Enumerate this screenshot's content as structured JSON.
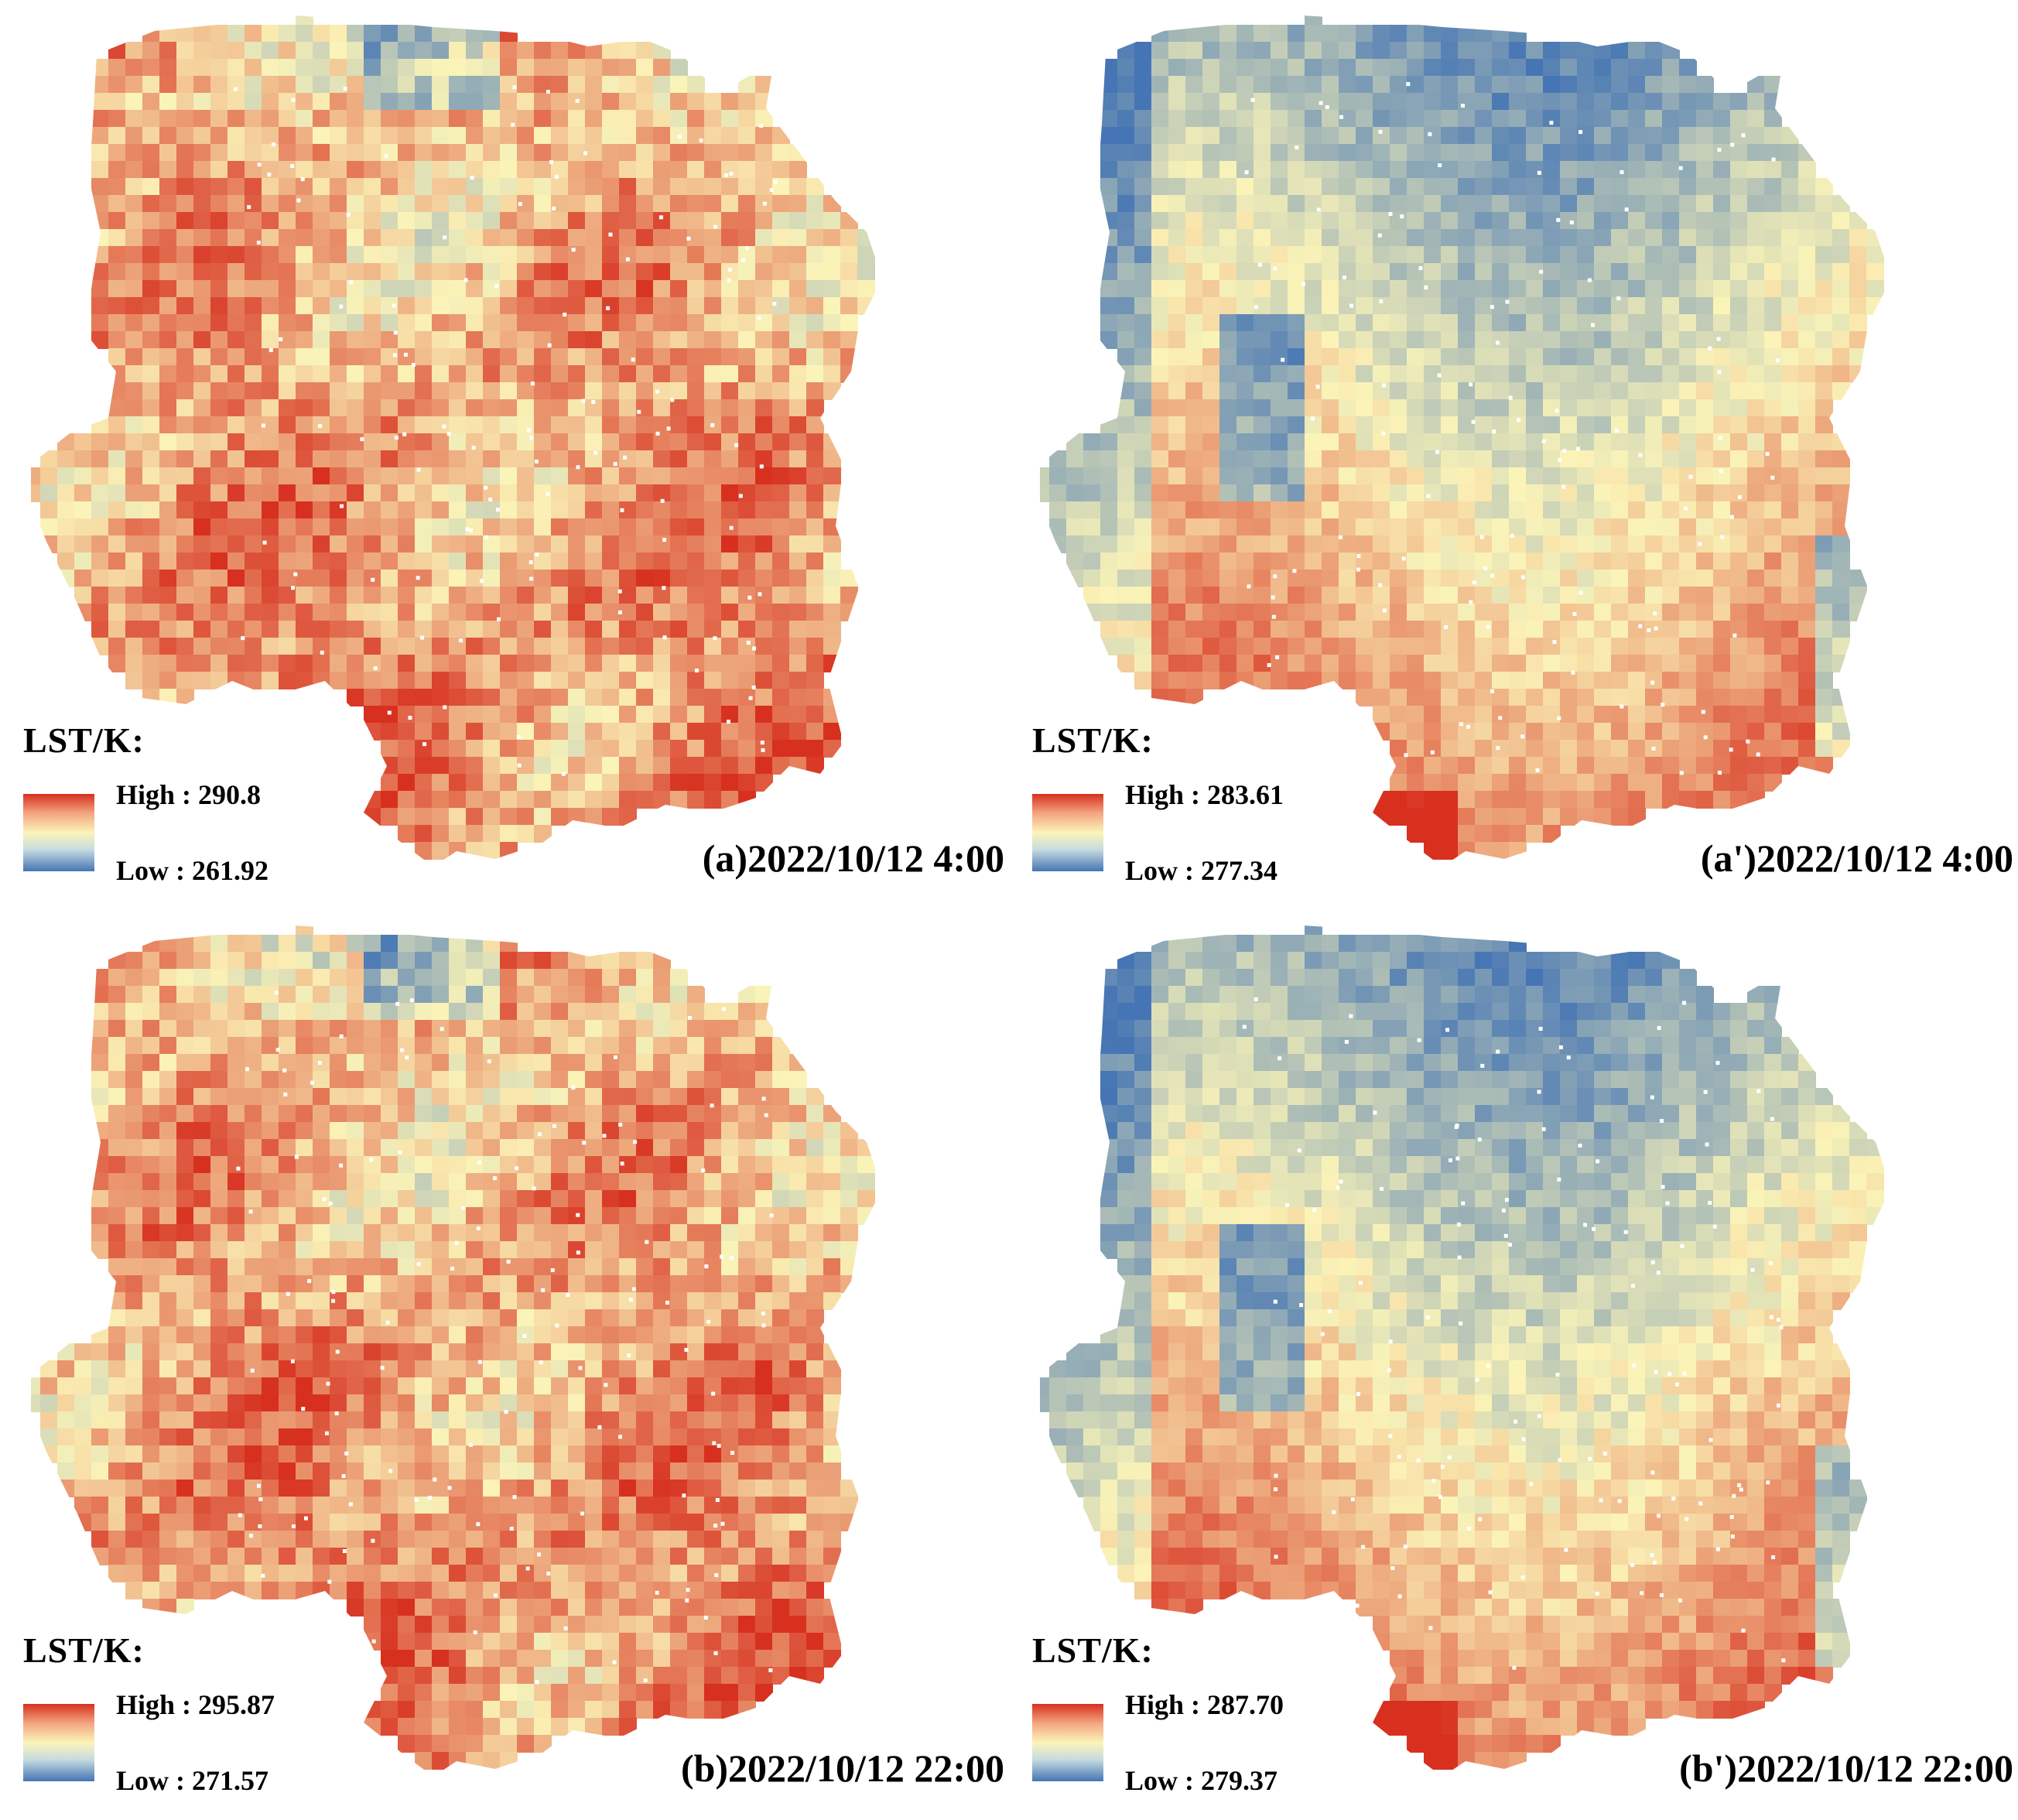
{
  "panels": [
    {
      "legend_title": "LST/K:",
      "high_label": "High : 290.8",
      "low_label": "Low : 261.92",
      "caption": "(a)2022/10/12 4:00",
      "pattern": "warm",
      "colors": {
        "high": "#d7301f",
        "mid": "#fbf4b8",
        "low": "#4575b4"
      }
    },
    {
      "legend_title": "LST/K:",
      "high_label": "High : 283.61",
      "low_label": "Low : 277.34",
      "caption": "(a')2022/10/12 4:00",
      "pattern": "north-cool",
      "colors": {
        "high": "#d7301f",
        "mid": "#fbf4b8",
        "low": "#4575b4"
      }
    },
    {
      "legend_title": "LST/K:",
      "high_label": "High : 295.87",
      "low_label": "Low : 271.57",
      "caption": "(b)2022/10/12 22:00",
      "pattern": "warm",
      "colors": {
        "high": "#d7301f",
        "mid": "#fbf4b8",
        "low": "#4575b4"
      }
    },
    {
      "legend_title": "LST/K:",
      "high_label": "High : 287.70",
      "low_label": "Low : 279.37",
      "caption": "(b')2022/10/12 22:00",
      "pattern": "north-cool",
      "colors": {
        "high": "#d7301f",
        "mid": "#fbf4b8",
        "low": "#4575b4"
      }
    }
  ]
}
